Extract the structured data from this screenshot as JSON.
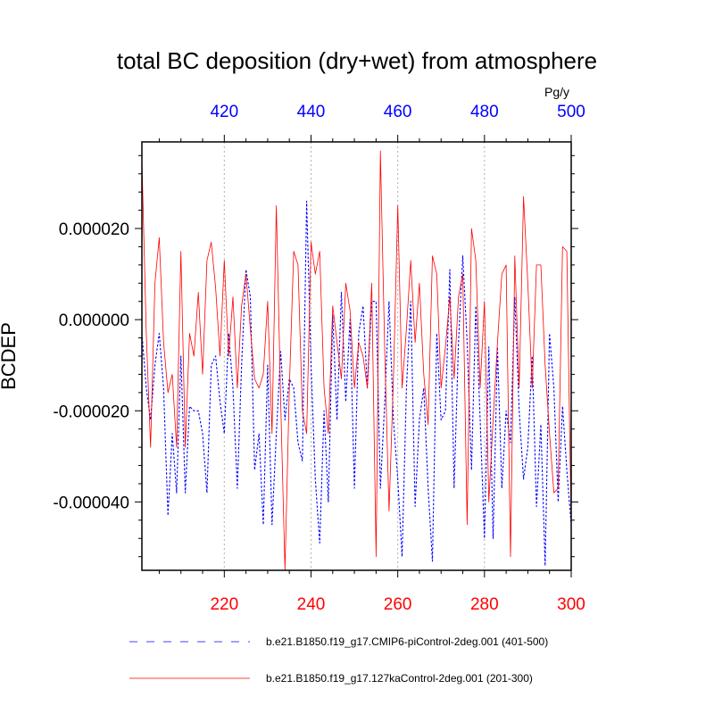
{
  "chart_data": {
    "type": "line",
    "title": "total BC deposition (dry+wet) from atmosphere",
    "ylabel": "BCDEP",
    "units": "Pg/y",
    "ylim": [
      -5.5e-05,
      3.9e-05
    ],
    "y_ticks": [
      2e-05,
      0.0,
      -2e-05,
      -4e-05
    ],
    "y_tick_labels": [
      "0.000020",
      "0.000000",
      "-0.000020",
      "-0.000040"
    ],
    "x_bottom": {
      "range": [
        201,
        300
      ],
      "ticks": [
        220,
        240,
        260,
        280,
        300
      ],
      "color": "#ff0000"
    },
    "x_top": {
      "range": [
        401,
        500
      ],
      "ticks": [
        420,
        440,
        460,
        480,
        500
      ],
      "color": "#0000ff"
    },
    "grid": "vertical dotted at major ticks",
    "legend_position": "bottom",
    "series": [
      {
        "name": "b.e21.B1850.f19_g17.CMIP6-piControl-2deg.001 (401-500)",
        "axis": "top",
        "style": "dashed",
        "color": "#0000ff",
        "x_start": 401,
        "values": [
          -3e-06,
          -1.5e-05,
          -2.2e-05,
          -1e-05,
          -3e-06,
          -1.5e-05,
          -4.3e-05,
          -2.5e-05,
          -3.8e-05,
          -8e-06,
          -3.8e-05,
          -1.9e-05,
          -2e-05,
          -2e-05,
          -2.5e-05,
          -3.8e-05,
          -1e-05,
          -8e-06,
          -1.8e-05,
          -2.5e-05,
          -3e-06,
          -1.5e-05,
          -3.7e-05,
          -1e-05,
          1.1e-05,
          5e-06,
          -3.3e-05,
          -2.5e-05,
          -4.5e-05,
          -1e-05,
          -4.5e-05,
          -2.5e-05,
          -7e-06,
          -2.2e-05,
          -1.3e-05,
          -1.5e-05,
          -2.7e-05,
          -3.1e-05,
          2.6e-05,
          -1e-05,
          -3.5e-05,
          -4.9e-05,
          -2e-05,
          -4e-05,
          1e-06,
          -2.2e-05,
          6e-06,
          -1.8e-05,
          0.0,
          -3.7e-05,
          -3e-06,
          3e-06,
          -1.5e-05,
          4e-06,
          4e-06,
          -3.7e-05,
          -1.8e-05,
          4e-06,
          -2.2e-05,
          -3.5e-05,
          -5.2e-05,
          -1.5e-05,
          4e-06,
          -4.1e-05,
          -2.2e-05,
          -1.5e-05,
          -3.7e-05,
          -5.3e-05,
          -3e-06,
          -2.2e-05,
          -2e-05,
          1.1e-05,
          -3.7e-05,
          -5e-06,
          1.4e-05,
          -5e-06,
          -3.3e-05,
          3e-06,
          -2.2e-05,
          -4.8e-05,
          -6e-06,
          -4.8e-05,
          -6e-06,
          -3.7e-05,
          -2e-05,
          -2.7e-05,
          5e-06,
          -2e-05,
          -3.5e-05,
          -2.8e-05,
          -8e-06,
          -4.1e-05,
          -2.3e-05,
          -5.4e-05,
          -3e-06,
          -1.5e-05,
          -4e-05,
          -1.9e-05,
          -3.3e-05,
          -4.5e-05
        ]
      },
      {
        "name": "b.e21.B1850.f19_g17.127kaControl-2deg.001 (201-300)",
        "axis": "bottom",
        "style": "solid",
        "color": "#ff0000",
        "x_start": 201,
        "values": [
          3.5e-05,
          -3e-06,
          -2.8e-05,
          8e-06,
          1.8e-05,
          -5e-06,
          -1.6e-05,
          -1.2e-05,
          -2.8e-05,
          1.5e-05,
          -2.8e-05,
          -3e-06,
          -8e-06,
          6e-06,
          -1.2e-05,
          1.3e-05,
          1.7e-05,
          7e-06,
          -8e-06,
          1.3e-05,
          -8e-06,
          5e-06,
          -1.5e-05,
          3e-06,
          1e-05,
          -2e-06,
          -1.3e-05,
          -1.5e-05,
          -1.2e-05,
          4e-06,
          -2.5e-05,
          2.5e-05,
          -1.8e-05,
          -5.5e-05,
          -1.5e-05,
          1.5e-05,
          1.2e-05,
          -2e-05,
          -2.5e-05,
          1.7e-05,
          1e-05,
          1.5e-05,
          -1.5e-05,
          -2.5e-05,
          3e-06,
          -5e-06,
          -1.3e-05,
          8e-06,
          2e-06,
          -1.5e-05,
          -5e-06,
          -8e-06,
          -1.5e-05,
          8e-06,
          -5.2e-05,
          3.7e-05,
          -7e-06,
          -4.2e-05,
          -1.3e-05,
          2.5e-05,
          -1.5e-05,
          -2e-06,
          1.3e-05,
          -5e-06,
          8e-06,
          -1.2e-05,
          -2.3e-05,
          1.4e-05,
          1e-05,
          -1.5e-05,
          -6e-06,
          5e-06,
          -1.3e-05,
          5e-06,
          1e-05,
          -4.5e-05,
          2e-05,
          1.3e-05,
          -1.5e-05,
          4e-06,
          -4e-05,
          -2.2e-05,
          -5e-06,
          1e-05,
          1.2e-05,
          -5.2e-05,
          1.4e-05,
          -1.5e-05,
          2.7e-05,
          8e-06,
          -1.5e-05,
          1.2e-05,
          1.2e-05,
          -1e-05,
          -2.5e-05,
          -3.8e-05,
          -3.7e-05,
          1.6e-05,
          1.5e-05,
          -4.5e-05
        ]
      }
    ]
  }
}
